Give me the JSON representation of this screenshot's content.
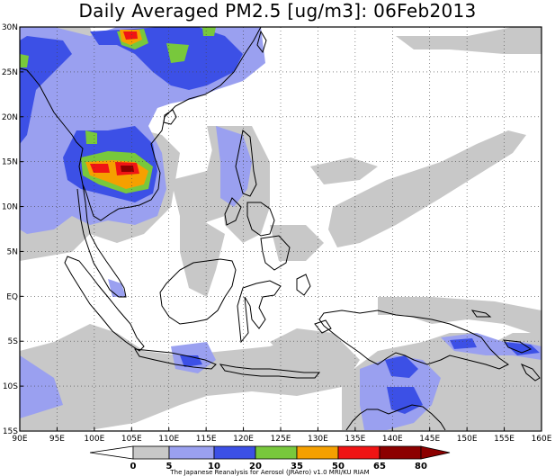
{
  "title": "Daily Averaged PM2.5 [ug/m3]: 06Feb2013",
  "map": {
    "lon_range": [
      90,
      160
    ],
    "lat_range": [
      -15,
      30
    ],
    "x_ticks": [
      "90E",
      "95E",
      "100E",
      "105E",
      "110E",
      "115E",
      "120E",
      "125E",
      "130E",
      "135E",
      "140E",
      "145E",
      "150E",
      "155E",
      "160E"
    ],
    "y_ticks": [
      "30N",
      "25N",
      "20N",
      "15N",
      "10N",
      "5N",
      "EQ",
      "5S",
      "10S",
      "15S"
    ]
  },
  "colorbar": {
    "levels": [
      "0",
      "5",
      "10",
      "20",
      "35",
      "50",
      "65",
      "80"
    ],
    "colors": [
      "#ffffff",
      "#c8c8c8",
      "#9aa0f0",
      "#3c50e6",
      "#78c83c",
      "#f5a000",
      "#f01414",
      "#8c0000"
    ]
  },
  "credit": "The Japanese Reanalysis for Aerosol (JRAero) v1.0 MRI/KU RIAM"
}
